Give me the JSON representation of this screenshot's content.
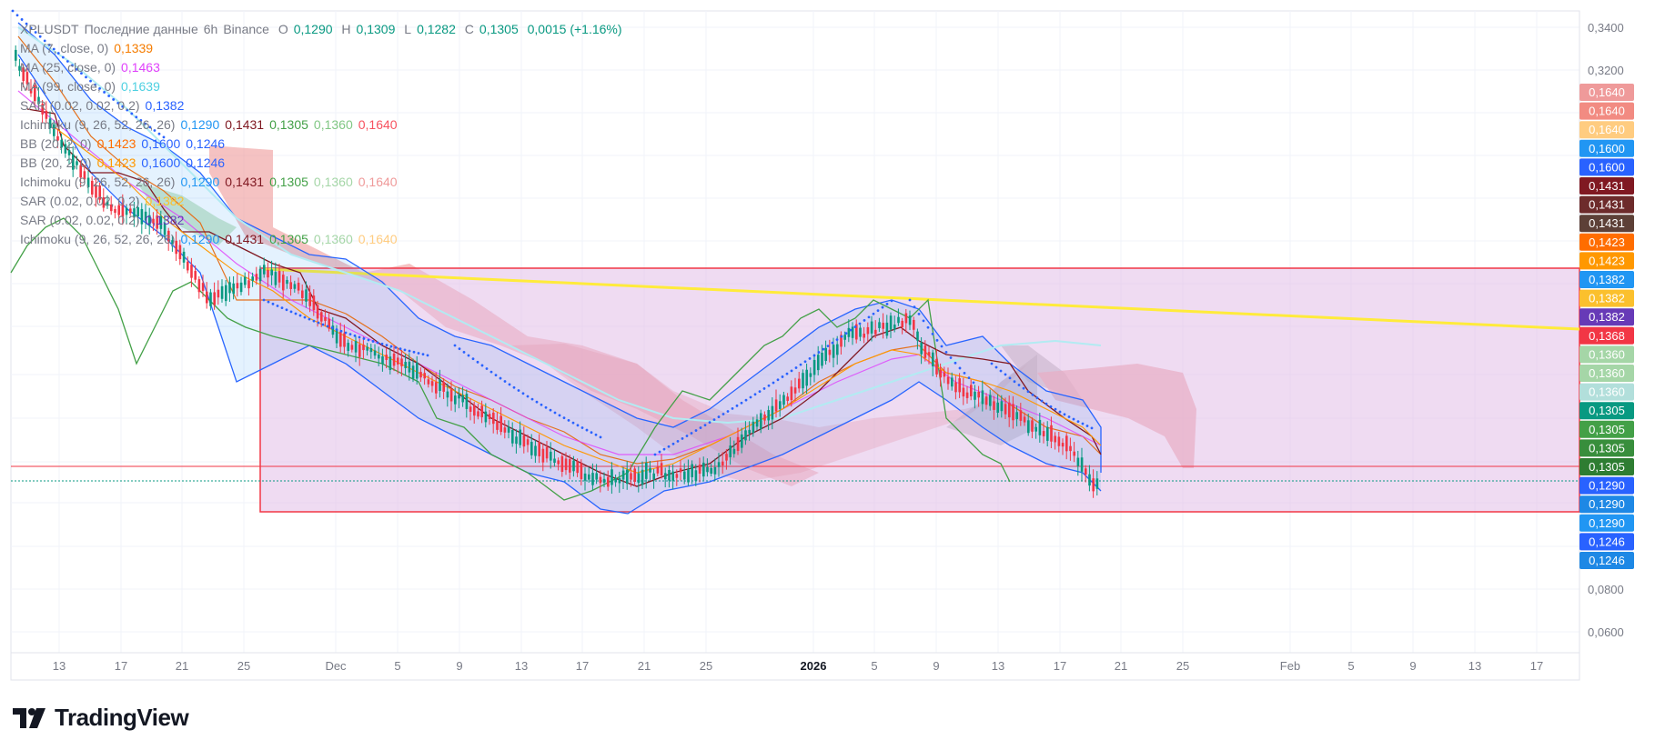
{
  "header": {
    "symbol": "XPLUSDT",
    "feed": "Последние данные",
    "interval": "6h",
    "exchange": "Binance",
    "ohlc": [
      {
        "k": "O",
        "v": "0,1290"
      },
      {
        "k": "H",
        "v": "0,1309"
      },
      {
        "k": "L",
        "v": "0,1282"
      },
      {
        "k": "C",
        "v": "0,1305"
      }
    ],
    "change": "0,0015 (+1.16%)"
  },
  "indicators": [
    {
      "label": "MA (7, close, 0)",
      "values": [
        {
          "v": "0,1339",
          "c": "#f57c00"
        }
      ]
    },
    {
      "label": "MA (25, close, 0)",
      "values": [
        {
          "v": "0,1463",
          "c": "#e040fb"
        }
      ]
    },
    {
      "label": "MA (99, close, 0)",
      "values": [
        {
          "v": "0,1639",
          "c": "#4dd0e1"
        }
      ]
    },
    {
      "label": "SAR (0.02, 0.02, 0.2)",
      "values": [
        {
          "v": "0,1382",
          "c": "#2962ff"
        }
      ]
    },
    {
      "label": "Ichimoku (9, 26, 52, 26, 26)",
      "values": [
        {
          "v": "0,1290",
          "c": "#2196f3"
        },
        {
          "v": "0,1431",
          "c": "#801922"
        },
        {
          "v": "0,1305",
          "c": "#43a047"
        },
        {
          "v": "0,1360",
          "c": "#81c784"
        },
        {
          "v": "0,1640",
          "c": "#f7525f"
        }
      ]
    },
    {
      "label": "BB (20, 2, 0)",
      "values": [
        {
          "v": "0,1423",
          "c": "#ff6d00"
        },
        {
          "v": "0,1600",
          "c": "#2962ff"
        },
        {
          "v": "0,1246",
          "c": "#2962ff"
        }
      ]
    },
    {
      "label": "BB (20, 2, 0)",
      "values": [
        {
          "v": "0,1423",
          "c": "#ff9800"
        },
        {
          "v": "0,1600",
          "c": "#2962ff"
        },
        {
          "v": "0,1246",
          "c": "#2962ff"
        }
      ]
    },
    {
      "label": "Ichimoku (9, 26, 52, 26, 26)",
      "values": [
        {
          "v": "0,1290",
          "c": "#2196f3"
        },
        {
          "v": "0,1431",
          "c": "#801922"
        },
        {
          "v": "0,1305",
          "c": "#43a047"
        },
        {
          "v": "0,1360",
          "c": "#a5d6a7"
        },
        {
          "v": "0,1640",
          "c": "#ef9a9a"
        }
      ]
    },
    {
      "label": "SAR (0.02, 0.02, 0.2)",
      "values": [
        {
          "v": "0,1382",
          "c": "#fbc02d"
        }
      ]
    },
    {
      "label": "SAR (0.02, 0.02, 0.2)",
      "values": [
        {
          "v": "0,1382",
          "c": "#673ab7"
        }
      ]
    },
    {
      "label": "Ichimoku (9, 26, 52, 26, 26)",
      "values": [
        {
          "v": "0,1290",
          "c": "#2196f3"
        },
        {
          "v": "0,1431",
          "c": "#801922"
        },
        {
          "v": "0,1305",
          "c": "#43a047"
        },
        {
          "v": "0,1360",
          "c": "#a5d6a7"
        },
        {
          "v": "0,1640",
          "c": "#ffcc80"
        }
      ]
    }
  ],
  "brand": "TradingView",
  "chart_data": {
    "type": "candlestick",
    "y_ticks": [
      "0,3400",
      "0,3200",
      "0,0800",
      "0,0600"
    ],
    "x_ticks": [
      "13",
      "17",
      "21",
      "25",
      "Dec",
      "5",
      "9",
      "13",
      "17",
      "21",
      "25",
      "2026",
      "5",
      "9",
      "13",
      "17",
      "21",
      "25",
      "Feb",
      "5",
      "9",
      "13",
      "17"
    ],
    "price_tags": [
      {
        "v": "0,1640",
        "c": "#ef9a9a",
        "dark": true
      },
      {
        "v": "0,1640",
        "c": "#f28b82",
        "dark": true
      },
      {
        "v": "0,1640",
        "c": "#ffcc80",
        "dark": true
      },
      {
        "v": "0,1600",
        "c": "#2196f3"
      },
      {
        "v": "0,1600",
        "c": "#2962ff"
      },
      {
        "v": "0,1431",
        "c": "#801922"
      },
      {
        "v": "0,1431",
        "c": "#6d2b2b"
      },
      {
        "v": "0,1431",
        "c": "#5d4037"
      },
      {
        "v": "0,1423",
        "c": "#ff6d00"
      },
      {
        "v": "0,1423",
        "c": "#ff9800"
      },
      {
        "v": "0,1382",
        "c": "#2196f3"
      },
      {
        "v": "0,1382",
        "c": "#fbc02d"
      },
      {
        "v": "0,1382",
        "c": "#673ab7"
      },
      {
        "v": "0,1368",
        "c": "#f23645"
      },
      {
        "v": "0,1360",
        "c": "#a5d6a7",
        "dark": true
      },
      {
        "v": "0,1360",
        "c": "#a5d6a7",
        "dark": true
      },
      {
        "v": "0,1360",
        "c": "#b2dfdb",
        "dark": true
      },
      {
        "v": "0,1305",
        "c": "#089981"
      },
      {
        "v": "0,1305",
        "c": "#43a047"
      },
      {
        "v": "0,1305",
        "c": "#388e3c"
      },
      {
        "v": "0,1305",
        "c": "#2e7d32"
      },
      {
        "v": "0,1290",
        "c": "#2962ff"
      },
      {
        "v": "0,1290",
        "c": "#1e88e5"
      },
      {
        "v": "0,1290",
        "c": "#2196f3"
      },
      {
        "v": "0,1246",
        "c": "#2962ff"
      },
      {
        "v": "0,1246",
        "c": "#1e88e5"
      }
    ],
    "colors": {
      "up": "#089981",
      "down": "#f23645",
      "box_fill": "#e1bee7",
      "box_stroke": "#f23645",
      "trendline": "#ffeb3b"
    }
  }
}
